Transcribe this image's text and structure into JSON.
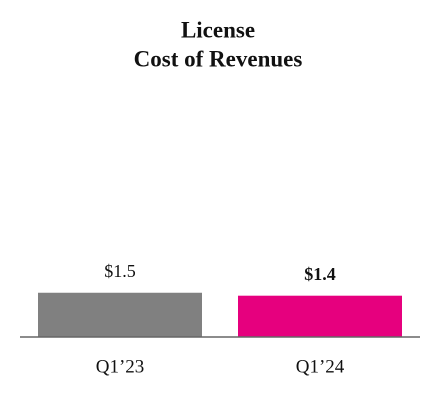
{
  "chart_data": {
    "type": "bar",
    "title": [
      "License",
      "Cost of Revenues"
    ],
    "categories": [
      "Q1’23",
      "Q1’24"
    ],
    "values": [
      1.5,
      1.4
    ],
    "value_labels": [
      "$1.5",
      "$1.4"
    ],
    "colors": [
      "#808080",
      "#e6007e"
    ]
  }
}
